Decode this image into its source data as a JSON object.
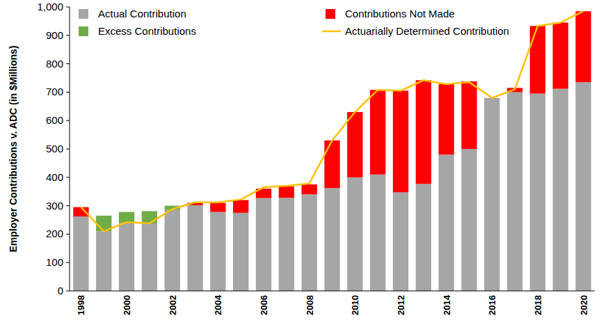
{
  "chart_data": {
    "type": "bar",
    "stacked": true,
    "y_label": "Employer Contributions v. ADC (in $Millions)",
    "categories": [
      "1998",
      null,
      "2000",
      null,
      "2002",
      null,
      "2004",
      null,
      "2006",
      null,
      "2008",
      null,
      "2010",
      null,
      "2012",
      null,
      "2014",
      null,
      "2016",
      null,
      "2018",
      null,
      "2020"
    ],
    "series": [
      {
        "name": "Actual Contribution",
        "color": "#a6a6a6",
        "type": "bar",
        "values": [
          262,
          210,
          240,
          238,
          285,
          302,
          278,
          275,
          327,
          328,
          340,
          362,
          400,
          410,
          347,
          377,
          480,
          500,
          680,
          700,
          695,
          712,
          735
        ]
      },
      {
        "name": "Contributions Not Made",
        "color": "#ff0000",
        "type": "bar",
        "values": [
          33,
          0,
          0,
          0,
          0,
          8,
          32,
          45,
          33,
          40,
          35,
          168,
          230,
          298,
          358,
          365,
          248,
          238,
          0,
          15,
          238,
          233,
          250
        ]
      },
      {
        "name": "Excess Contributions",
        "color": "#70ad47",
        "type": "bar",
        "values": [
          0,
          55,
          38,
          43,
          15,
          0,
          0,
          0,
          0,
          0,
          0,
          0,
          0,
          0,
          0,
          0,
          0,
          0,
          0,
          0,
          0,
          0,
          0
        ]
      },
      {
        "name": "Actuarially Determined Contribution",
        "color": "#ffc000",
        "type": "line",
        "values": [
          295,
          210,
          242,
          238,
          288,
          312,
          312,
          322,
          365,
          370,
          378,
          530,
          630,
          708,
          705,
          742,
          728,
          735,
          680,
          710,
          933,
          945,
          985
        ]
      }
    ],
    "ylim": [
      0,
      1000
    ],
    "yticks": [
      0,
      100,
      200,
      300,
      400,
      500,
      600,
      700,
      800,
      900,
      {
        "value": 1000,
        "label": "1,000"
      }
    ],
    "grid": false,
    "legend": "top"
  }
}
